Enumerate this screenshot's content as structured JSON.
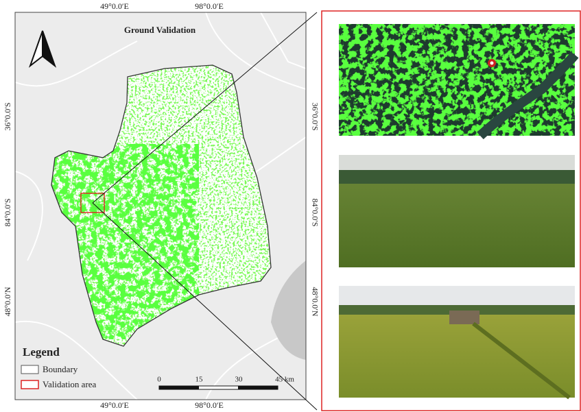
{
  "map": {
    "title": "Ground Validation",
    "top_labels": [
      "49°0.0′E",
      "98°0.0′E"
    ],
    "bottom_labels": [
      "49°0.0′E",
      "98°0.0′E"
    ],
    "left_labels": [
      "36°0.0′S",
      "84°0.0′S",
      "48°0.0′N"
    ],
    "right_labels": [
      "36°0.0′S",
      "84°0.0′S",
      "48°0.0′N"
    ],
    "legend": {
      "title": "Legend",
      "items": [
        "Boundary",
        "Validation area"
      ]
    },
    "scale_bar": [
      "0",
      "15",
      "30",
      "45 km"
    ]
  }
}
